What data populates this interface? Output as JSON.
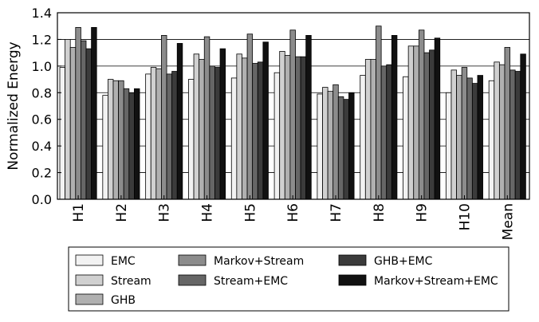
{
  "chart_data": {
    "type": "bar",
    "title": "",
    "xlabel": "",
    "ylabel": "Normalized Energy",
    "ylim": [
      0,
      1.4
    ],
    "yticks": [
      "0.0",
      "0.2",
      "0.4",
      "0.6",
      "0.8",
      "1.0",
      "1.2",
      "1.4"
    ],
    "grid": "horizontal",
    "legend_position": "bottom",
    "categories": [
      "H1",
      "H2",
      "H3",
      "H4",
      "H5",
      "H6",
      "H7",
      "H8",
      "H9",
      "H10",
      "Mean"
    ],
    "series": [
      {
        "name": "EMC",
        "color": "#f2f2f2",
        "values": [
          0.99,
          0.78,
          0.94,
          0.9,
          0.91,
          0.95,
          0.79,
          0.93,
          0.92,
          0.8,
          0.89
        ]
      },
      {
        "name": "Stream",
        "color": "#d0d0d0",
        "values": [
          1.2,
          0.9,
          0.99,
          1.09,
          1.09,
          1.11,
          0.84,
          1.05,
          1.15,
          0.97,
          1.03
        ]
      },
      {
        "name": "GHB",
        "color": "#b0b0b0",
        "values": [
          1.14,
          0.89,
          0.98,
          1.05,
          1.06,
          1.08,
          0.81,
          1.05,
          1.15,
          0.93,
          1.01
        ]
      },
      {
        "name": "Markov+Stream",
        "color": "#8c8c8c",
        "values": [
          1.29,
          0.89,
          1.23,
          1.22,
          1.24,
          1.27,
          0.86,
          1.3,
          1.27,
          0.99,
          1.14
        ]
      },
      {
        "name": "Stream+EMC",
        "color": "#666666",
        "values": [
          1.19,
          0.83,
          0.94,
          1.0,
          1.02,
          1.07,
          0.77,
          1.0,
          1.1,
          0.91,
          0.97
        ]
      },
      {
        "name": "GHB+EMC",
        "color": "#3b3b3b",
        "values": [
          1.13,
          0.8,
          0.96,
          0.99,
          1.03,
          1.07,
          0.75,
          1.01,
          1.12,
          0.87,
          0.96
        ]
      },
      {
        "name": "Markov+Stream+EMC",
        "color": "#111111",
        "values": [
          1.29,
          0.83,
          1.17,
          1.13,
          1.18,
          1.23,
          0.8,
          1.23,
          1.21,
          0.93,
          1.09
        ]
      }
    ]
  }
}
